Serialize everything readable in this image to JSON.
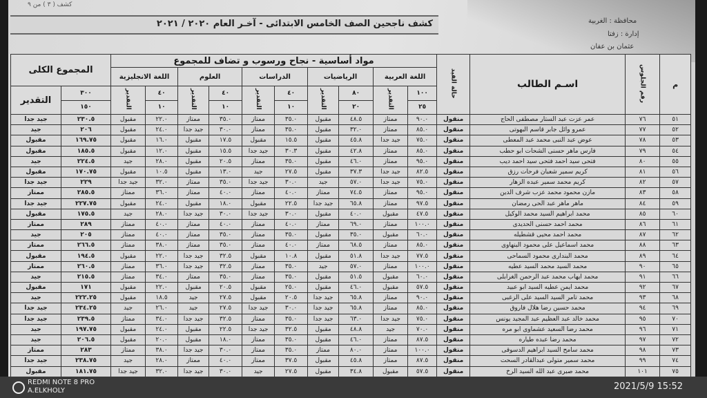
{
  "document": {
    "sheet_number": "كشف ( ٣ ) من ٩",
    "title": "كشف ناجحين  الصف الخامس الابتدائى - آخـر العام ٢٠٢٠ / ٢٠٢١",
    "governorate": "محافظة : الغربية",
    "administration": "إدارة : زفتا",
    "school": "عثمان بن عفان"
  },
  "headers": {
    "index": "م",
    "seat_number": "رقم الجلوس",
    "student_name": "اسـم الطالب",
    "enrollment_status": "حالة القيد",
    "group": "مواد أساسية - نجاح ورسوب و تضاف للمجموع",
    "grade_label": "التقدير",
    "total": "المجموع الكلى",
    "total_grade": "التقدير",
    "total_max": "٣٠٠",
    "total_min": "١٥٠",
    "subjects": [
      {
        "name": "اللغة العربية",
        "max": "١٠٠",
        "min": "٢٥"
      },
      {
        "name": "الرياضيات",
        "max": "٨٠",
        "min": "٢٠"
      },
      {
        "name": "الدراسات",
        "max": "٤٠",
        "min": "١٠"
      },
      {
        "name": "العلوم",
        "max": "٤٠",
        "min": "١٠"
      },
      {
        "name": "اللغة الانجليزية",
        "max": "٤٠",
        "min": "١٠"
      }
    ]
  },
  "rows": [
    [
      "٥١",
      "٧٦",
      "عمر عزت عبد الستار مصطفى الحاج",
      "منقول",
      "٩٠.٠",
      "ممتاز",
      "٤٨.٥",
      "مقبول",
      "٣٥.٠",
      "ممتاز",
      "٣٥.٠",
      "ممتاز",
      "٢٢.٠",
      "مقبول",
      "٢٣٠.٥",
      "جيد جدا"
    ],
    [
      "٥٢",
      "٧٧",
      "عمرو وائل جابر قاسم البهوتى",
      "منقول",
      "٨٥.٠",
      "ممتاز",
      "٣٢.٠",
      "مقبول",
      "٣٥.٠",
      "ممتاز",
      "٣٠.٠",
      "جيد جدا",
      "٢٤.٠",
      "مقبول",
      "٢٠٦",
      "جيد"
    ],
    [
      "٥٣",
      "٧٨",
      "عوض عبد النبى محمد عبد المعطى",
      "منقول",
      "٧٥.٠",
      "جيد جدا",
      "٤٥.٨",
      "مقبول",
      "١٥.٥",
      "مقبول",
      "١٧.٥",
      "مقبول",
      "١٦.٠",
      "مقبول",
      "١٦٩.٧٥",
      "مقبول"
    ],
    [
      "٥٤",
      "٧٩",
      "فارس ماهر حسنى الشحات ابو حطب",
      "منقول",
      "٨٥.٠",
      "ممتاز",
      "٤٢.٨",
      "مقبول",
      "٣٠.٣",
      "جيد جدا",
      "١٥.٥",
      "مقبول",
      "١٢.٠",
      "مقبول",
      "١٨٥.٥",
      "مقبول"
    ],
    [
      "٥٥",
      "٨٠",
      "فتحى سيد احمد فتحى سيد احمد ديب",
      "منقول",
      "٩٥.٠",
      "ممتاز",
      "٤٦.٠",
      "مقبول",
      "٣٥.٠",
      "ممتاز",
      "٢٠.٥",
      "مقبول",
      "٢٨.٠",
      "جيد",
      "٢٢٤.٥",
      "جيد"
    ],
    [
      "٥٦",
      "٨١",
      "كريم سمير شعبان فرحات رزق",
      "منقول",
      "٨٢.٥",
      "جيد جدا",
      "٣٧.٣",
      "مقبول",
      "٢٧.٥",
      "جيد",
      "١٣.٠",
      "مقبول",
      "١٠.٥",
      "مقبول",
      "١٧٠.٧٥",
      "مقبول"
    ],
    [
      "٥٧",
      "٨٢",
      "كريم محمد سمير عبده الزهار",
      "منقول",
      "٧٥.٠",
      "جيد جدا",
      "٥٧.٠",
      "جيد",
      "٣٠.٠",
      "جيد جدا",
      "٣٥.٠",
      "ممتاز",
      "٣٢.٠",
      "جيد جدا",
      "٢٢٩",
      "جيد جدا"
    ],
    [
      "٥٨",
      "٨٣",
      "مازن محمود محمد عزب شرف الدين",
      "منقول",
      "٩٥.٠",
      "ممتاز",
      "٧٤.٥",
      "ممتاز",
      "٤٠.٠",
      "ممتاز",
      "٤٠.٠",
      "ممتاز",
      "٣٦.٠",
      "ممتاز",
      "٢٨٥.٥",
      "ممتاز"
    ],
    [
      "٥٩",
      "٨٤",
      "ماهر ماهر عبد الحى رمضان",
      "منقول",
      "٩٧.٥",
      "ممتاز",
      "٦٥.٨",
      "جيد جدا",
      "٢٢.٥",
      "مقبول",
      "١٨.٠",
      "مقبول",
      "٢٤.٠",
      "مقبول",
      "٢٢٧.٧٥",
      "جيد جدا"
    ],
    [
      "٦٠",
      "٨٥",
      "محمد ابراهيم السيد محمد الوكيل",
      "منقول",
      "٤٧.٥",
      "مقبول",
      "٤٠.٠",
      "مقبول",
      "٣٠.٠",
      "جيد جدا",
      "٣٠.٠",
      "جيد جدا",
      "٢٨.٠",
      "جيد",
      "١٧٥.٥",
      "مقبول"
    ],
    [
      "٦١",
      "٨٦",
      "محمد احمد حسنى الحديدى",
      "منقول",
      "١٠٠.٠",
      "ممتاز",
      "٦٩.٠",
      "ممتاز",
      "٤٠.٠",
      "ممتاز",
      "٤٠.٠",
      "ممتاز",
      "٤٠.٠",
      "ممتاز",
      "٢٨٩",
      "ممتاز"
    ],
    [
      "٦٢",
      "٨٧",
      "محمد احمد محيى قشطيله",
      "منقول",
      "٦٠.٠",
      "مقبول",
      "٣٥.٠",
      "مقبول",
      "٣٥.٠",
      "ممتاز",
      "٣٥.٠",
      "ممتاز",
      "٤٠.٠",
      "ممتاز",
      "٢٠٥",
      "جيد"
    ],
    [
      "٦٣",
      "٨٨",
      "محمد اسماعيل على محمود البنهاوى",
      "منقول",
      "٨٥.٠",
      "ممتاز",
      "٦٨.٥",
      "ممتاز",
      "٤٠.٠",
      "ممتاز",
      "٣٥.٠",
      "ممتاز",
      "٣٨.٠",
      "ممتاز",
      "٢٦٦.٥",
      "ممتاز"
    ],
    [
      "٦٤",
      "٨٩",
      "محمد البندارى محمود السماحى",
      "منقول",
      "٧٧.٥",
      "جيد جدا",
      "٥١.٨",
      "مقبول",
      "١٠.٨",
      "مقبول",
      "٣٢.٥",
      "جيد جدا",
      "٢٢.٠",
      "مقبول",
      "١٩٤.٥",
      "مقبول"
    ],
    [
      "٦٥",
      "٩٠",
      "محمد السيد محمد السيد عطيه",
      "منقول",
      "١٠٠.٠",
      "ممتاز",
      "٥٧.٠",
      "جيد",
      "٣٥.٠",
      "ممتاز",
      "٣٢.٥",
      "جيد جدا",
      "٣٦.٠",
      "ممتاز",
      "٢٦٠.٥",
      "ممتاز"
    ],
    [
      "٦٦",
      "٩١",
      "محمد ايهاب محمد عبد الرحمن الغرابلى",
      "منقول",
      "٦٠.٠",
      "مقبول",
      "٥١.٥",
      "مقبول",
      "٣٥.٠",
      "ممتاز",
      "٣٥.٠",
      "ممتاز",
      "٣٤.٠",
      "ممتاز",
      "٢١٥.٥",
      "جيد"
    ],
    [
      "٦٧",
      "٩٢",
      "محمد ايمن عطيه السيد ابو عبيد",
      "منقول",
      "٥٧.٥",
      "مقبول",
      "٤٦.٠",
      "مقبول",
      "٢٥.٠",
      "مقبول",
      "٢٠.٥",
      "مقبول",
      "٢٢.٠",
      "مقبول",
      "١٧١",
      "مقبول"
    ],
    [
      "٦٨",
      "٩٣",
      "محمد تامر السيد السيد على الزغبى",
      "منقول",
      "٩٠.٠",
      "ممتاز",
      "٦٥.٨",
      "جيد جدا",
      "٢٠.٥",
      "مقبول",
      "٢٧.٥",
      "جيد",
      "١٨.٥",
      "مقبول",
      "٢٢٢.٢٥",
      "جيد"
    ],
    [
      "٦٩",
      "٩٤",
      "محمد حسين رضا هلال فاروق",
      "منقول",
      "٨٥.٠",
      "ممتاز",
      "٦٥.٨",
      "جيد جدا",
      "٣٠.٠",
      "جيد جدا",
      "٢٧.٥",
      "جيد",
      "٢٦.٠",
      "جيد",
      "٢٣٤.٢٥",
      "جيد جدا"
    ],
    [
      "٧٠",
      "٩٥",
      "محمد خالد عبد العظيم عبد المجيد يونس",
      "منقول",
      "٧٥.٠",
      "جيد جدا",
      "٦٣.٠",
      "جيد جدا",
      "٣٥.٠",
      "ممتاز",
      "٣٢.٥",
      "جيد جدا",
      "٣٤.٠",
      "ممتاز",
      "٢٣٩.٥",
      "جيد جدا"
    ],
    [
      "٧١",
      "٩٦",
      "محمد رضا السعيد عشماوى ابو مره",
      "منقول",
      "٧٠.٠",
      "جيد",
      "٤٨.٨",
      "مقبول",
      "٣٢.٥",
      "جيد جدا",
      "٢٢.٥",
      "مقبول",
      "٢٤.٠",
      "مقبول",
      "١٩٧.٧٥",
      "جيد"
    ],
    [
      "٧٢",
      "٩٧",
      "محمد رضا عبده طياره",
      "منقول",
      "٨٧.٥",
      "ممتاز",
      "٤٦.٠",
      "مقبول",
      "٣٥.٠",
      "ممتاز",
      "١٨.٠",
      "مقبول",
      "٢٠.٠",
      "مقبول",
      "٢٠٦.٥",
      "جيد"
    ],
    [
      "٧٣",
      "٩٨",
      "محمد سامح السيد ابراهيم الدسوقى",
      "منقول",
      "١٠٠.٠",
      "ممتاز",
      "٨٠.٠",
      "ممتاز",
      "٣٥.٠",
      "ممتاز",
      "٣٠.٠",
      "جيد جدا",
      "٣٨.٠",
      "ممتاز",
      "٢٨٣",
      "ممتاز"
    ],
    [
      "٧٤",
      "٩٩",
      "محمد سمير متولى عبدالقادر السحت",
      "منقول",
      "٨٧.٥",
      "ممتاز",
      "٤٥.٨",
      "مقبول",
      "٣٧.٥",
      "ممتاز",
      "٤٠.٠",
      "ممتاز",
      "٢٨.٠",
      "جيد",
      "٢٣٨.٧٥",
      "جيد جدا"
    ],
    [
      "٧٥",
      "١٠١",
      "محمد صبرى عبد الله السيد الرخ",
      "منقول",
      "٥٧.٥",
      "مقبول",
      "٣٤.٨",
      "مقبول",
      "٢٧.٥",
      "جيد",
      "٣٠.٠",
      "جيد جدا",
      "٣٢.٠",
      "جيد جدا",
      "١٨١.٧٥",
      "مقبول"
    ]
  ],
  "watermark": {
    "device": "REDMI NOTE 8 PRO",
    "author": "A.ELKHOLY",
    "timestamp": "2021/5/9  15:52"
  }
}
